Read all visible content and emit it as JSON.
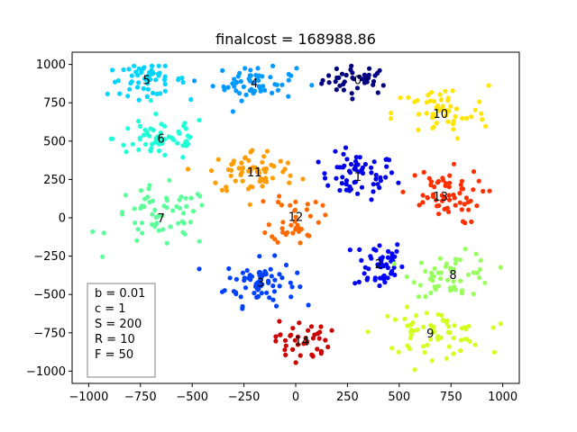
{
  "chart_data": {
    "type": "scatter",
    "title": "finalcost = 168988.86",
    "xlim": [
      -1080,
      1080
    ],
    "ylim": [
      -1080,
      1080
    ],
    "xticks": [
      -1000,
      -750,
      -500,
      -250,
      0,
      250,
      500,
      750,
      1000
    ],
    "yticks": [
      -1000,
      -750,
      -500,
      -250,
      0,
      250,
      500,
      750,
      1000
    ],
    "grid": false,
    "clusters": [
      {
        "label": "0",
        "center": [
          300,
          900
        ],
        "color": "#00007f",
        "spread": [
          170,
          95
        ],
        "count": 40
      },
      {
        "label": "1",
        "center": [
          300,
          270
        ],
        "color": "#0000e6",
        "spread": [
          185,
          150
        ],
        "count": 60
      },
      {
        "label": "2",
        "center": [
          400,
          -300
        ],
        "color": "#0000ff",
        "spread": [
          120,
          170
        ],
        "count": 50
      },
      {
        "label": "3",
        "center": [
          -170,
          -420
        ],
        "color": "#0040ff",
        "spread": [
          170,
          150
        ],
        "count": 70
      },
      {
        "label": "4",
        "center": [
          -200,
          880
        ],
        "color": "#0099ff",
        "spread": [
          200,
          110
        ],
        "count": 55
      },
      {
        "label": "5",
        "center": [
          -720,
          900
        ],
        "color": "#00d4ff",
        "spread": [
          190,
          100
        ],
        "count": 55
      },
      {
        "label": "6",
        "center": [
          -650,
          520
        ],
        "color": "#1fffd7",
        "spread": [
          230,
          150
        ],
        "count": 60
      },
      {
        "label": "7",
        "center": [
          -650,
          0
        ],
        "color": "#5cff9a",
        "spread": [
          250,
          200
        ],
        "count": 60
      },
      {
        "label": "8",
        "center": [
          760,
          -370
        ],
        "color": "#98ff5e",
        "spread": [
          200,
          140
        ],
        "count": 55
      },
      {
        "label": "9",
        "center": [
          650,
          -750
        ],
        "color": "#d4ff23",
        "spread": [
          260,
          150
        ],
        "count": 65
      },
      {
        "label": "10",
        "center": [
          700,
          680
        ],
        "color": "#ffe500",
        "spread": [
          230,
          180
        ],
        "count": 55
      },
      {
        "label": "11",
        "center": [
          -200,
          300
        ],
        "color": "#ff9c00",
        "spread": [
          220,
          150
        ],
        "count": 65
      },
      {
        "label": "12",
        "center": [
          0,
          10
        ],
        "color": "#ff6a00",
        "spread": [
          120,
          180
        ],
        "count": 40
      },
      {
        "label": "13",
        "center": [
          700,
          140
        ],
        "color": "#ff3000",
        "spread": [
          200,
          180
        ],
        "count": 60
      },
      {
        "label": "14",
        "center": [
          30,
          -800
        ],
        "color": "#cd0000",
        "spread": [
          130,
          130
        ],
        "count": 40
      }
    ],
    "legend_text": [
      "b = 0.01",
      "c = 1",
      "S = 200",
      "R = 10",
      "F = 50"
    ],
    "legend_placement": "lower-left"
  }
}
